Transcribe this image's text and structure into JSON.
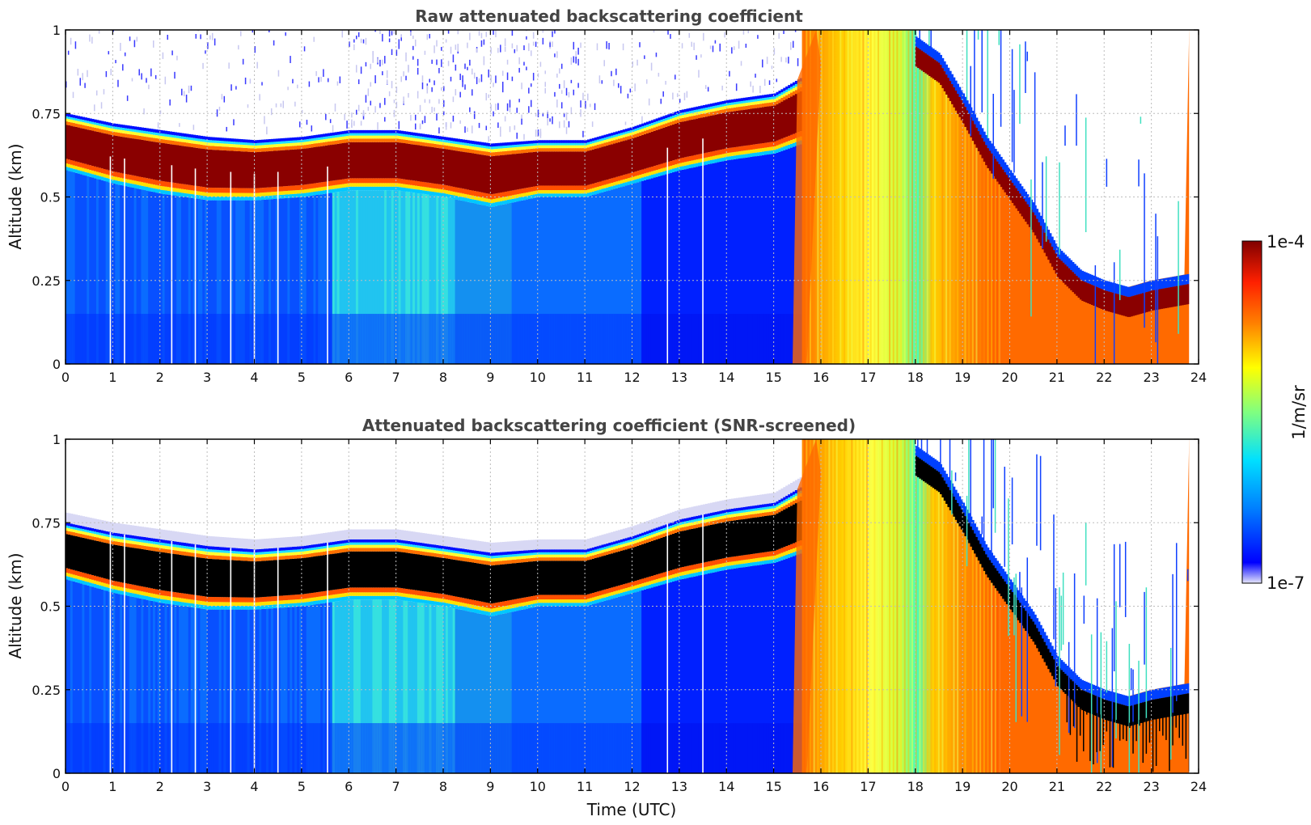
{
  "chart_data": [
    {
      "type": "heatmap",
      "title": "Raw attenuated backscattering coefficient",
      "xlabel": "",
      "ylabel": "Altitude (km)",
      "xlim": [
        0,
        24
      ],
      "ylim": [
        0,
        1
      ],
      "xticks": [
        0,
        1,
        2,
        3,
        4,
        5,
        6,
        7,
        8,
        9,
        10,
        11,
        12,
        13,
        14,
        15,
        16,
        17,
        18,
        19,
        20,
        21,
        22,
        23,
        24
      ],
      "yticks": [
        "0",
        "0.25",
        "0.5",
        "0.75",
        "1"
      ],
      "grid": true,
      "layer": {
        "description_hours": [
          0,
          1,
          2,
          3,
          4,
          5,
          6,
          7,
          8,
          9,
          10,
          11,
          12,
          13,
          14,
          15,
          15.6
        ],
        "top_km": [
          0.75,
          0.72,
          0.7,
          0.68,
          0.67,
          0.68,
          0.7,
          0.7,
          0.68,
          0.66,
          0.67,
          0.67,
          0.71,
          0.76,
          0.79,
          0.81,
          0.86
        ],
        "base_km": [
          0.58,
          0.54,
          0.51,
          0.49,
          0.49,
          0.5,
          0.52,
          0.52,
          0.5,
          0.47,
          0.5,
          0.5,
          0.54,
          0.58,
          0.61,
          0.63,
          0.66
        ]
      },
      "fog_hours": [
        15.6,
        19.8
      ],
      "late_layer": {
        "hours": [
          18.0,
          18.5,
          19.0,
          19.5,
          20.0,
          20.5,
          21.0,
          21.5,
          22.0,
          22.5,
          23.0,
          23.8
        ],
        "altitude_km": [
          0.95,
          0.9,
          0.78,
          0.65,
          0.55,
          0.45,
          0.32,
          0.25,
          0.22,
          0.2,
          0.22,
          0.24
        ]
      },
      "data_end_hour": 23.8,
      "gap_hours": [
        0.95,
        1.25,
        2.25,
        2.75,
        3.5,
        4.0,
        4.5,
        5.55,
        12.75,
        13.5
      ]
    },
    {
      "type": "heatmap",
      "title": "Attenuated backscattering coefficient (SNR-screened)",
      "xlabel": "Time (UTC)",
      "ylabel": "Altitude (km)",
      "xlim": [
        0,
        24
      ],
      "ylim": [
        0,
        1
      ],
      "xticks": [
        0,
        1,
        2,
        3,
        4,
        5,
        6,
        7,
        8,
        9,
        10,
        11,
        12,
        13,
        14,
        15,
        16,
        17,
        18,
        19,
        20,
        21,
        22,
        23,
        24
      ],
      "yticks": [
        "0",
        "0.25",
        "0.5",
        "0.75",
        "1"
      ],
      "grid": true,
      "saturated_color": "#000000"
    }
  ],
  "colorbar": {
    "label": "1/m/sr",
    "max_label": "1e-4",
    "min_label": "1e-7",
    "colormap": "jet",
    "colors": [
      "#e6e6fa",
      "#0000ff",
      "#0080ff",
      "#00e0ff",
      "#80ff80",
      "#ffff00",
      "#ff8000",
      "#ff2000",
      "#800000"
    ]
  }
}
